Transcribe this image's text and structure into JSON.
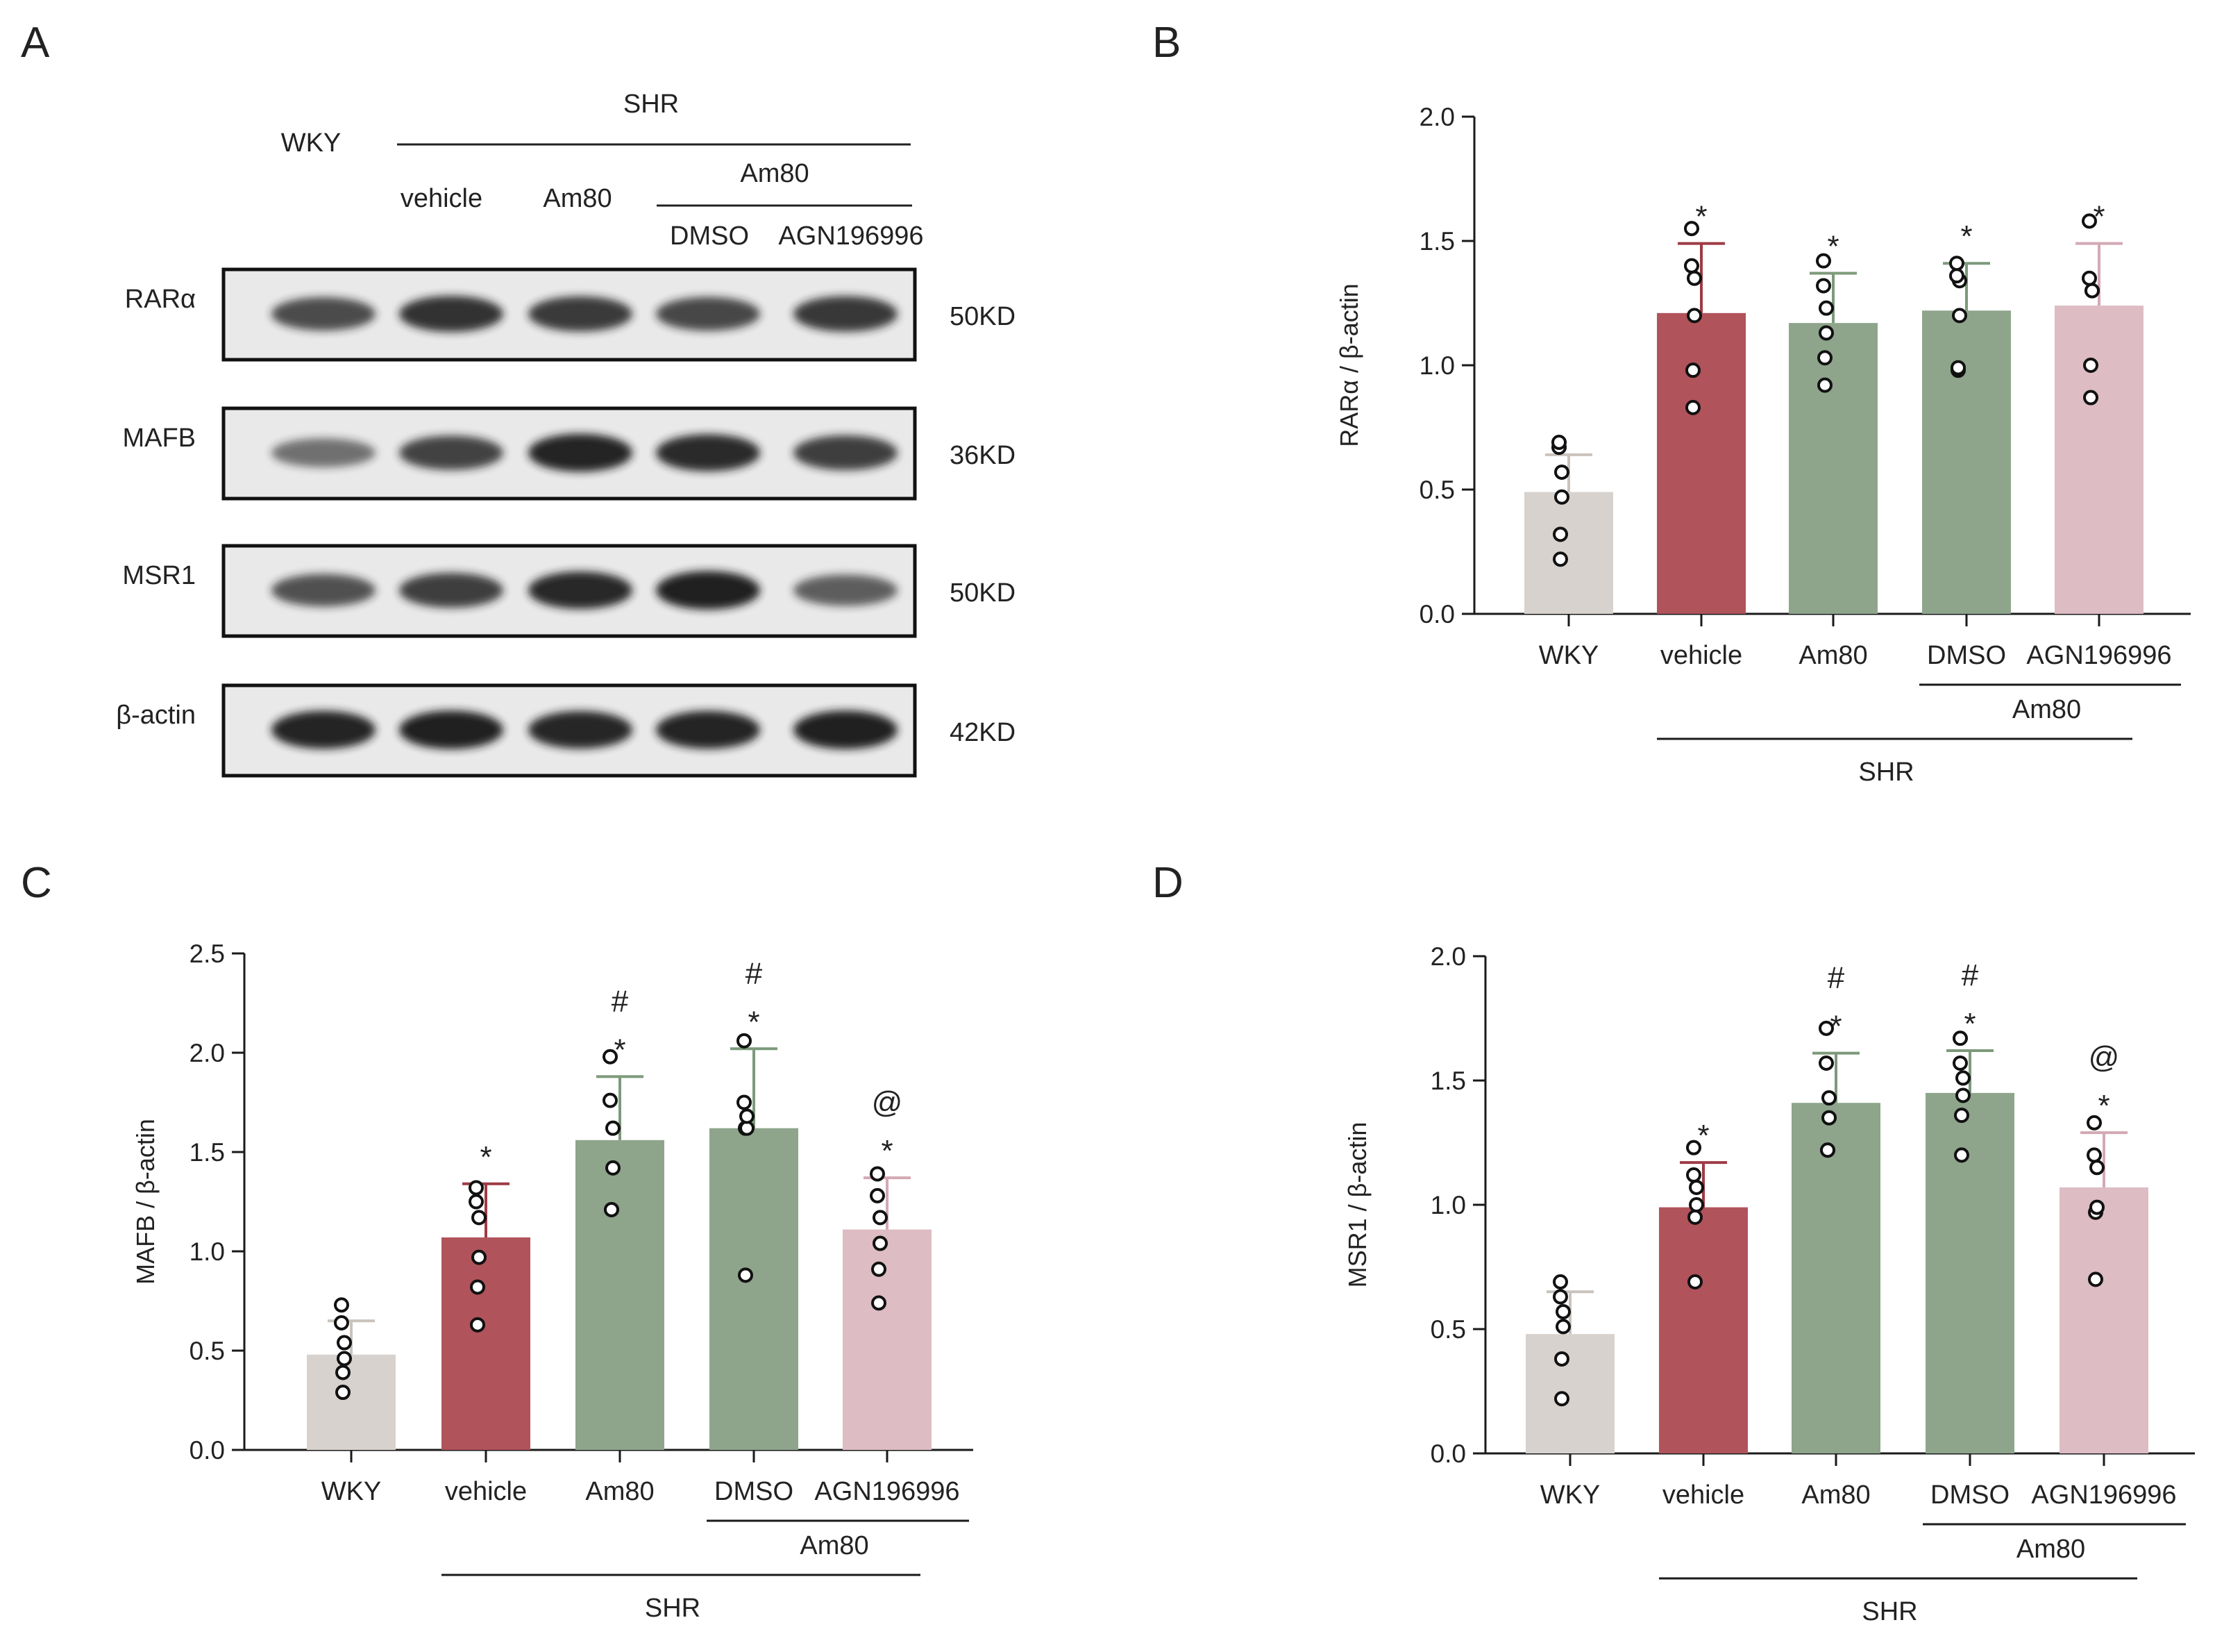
{
  "panel_letters": {
    "A": "A",
    "B": "B",
    "C": "C",
    "D": "D"
  },
  "colors": {
    "WKY": "#d7d2cd",
    "vehicle": "#b1535b",
    "Am80": "#8ea58c",
    "DMSO": "#8ea58c",
    "AGN196996": "#ddbcc4",
    "axis": "#1a1a1a",
    "blot_bg": "#e9e9e9",
    "band": "#1c1c1c"
  },
  "western_blot": {
    "header": {
      "wky": "WKY",
      "shr": "SHR",
      "vehicle": "vehicle",
      "am80": "Am80",
      "am80_group": "Am80",
      "dmso": "DMSO",
      "agn": "AGN196996"
    },
    "rows": [
      {
        "label": "RARα",
        "kd": "50KD",
        "intensities": [
          0.7,
          0.85,
          0.8,
          0.72,
          0.82
        ]
      },
      {
        "label": "MAFB",
        "kd": "36KD",
        "intensities": [
          0.45,
          0.75,
          0.95,
          0.9,
          0.78
        ]
      },
      {
        "label": "MSR1",
        "kd": "50KD",
        "intensities": [
          0.65,
          0.78,
          0.92,
          0.98,
          0.58
        ]
      },
      {
        "label": "β-actin",
        "kd": "42KD",
        "intensities": [
          0.95,
          0.98,
          0.93,
          0.95,
          0.98
        ]
      }
    ]
  },
  "chart_data": [
    {
      "panel": "B",
      "type": "bar",
      "ylabel": "RARα / β-actin",
      "ylim": [
        0,
        2.0
      ],
      "yticks": [
        "0.0",
        "0.5",
        "1.0",
        "1.5",
        "2.0"
      ],
      "categories": [
        "WKY",
        "vehicle",
        "Am80",
        "DMSO",
        "AGN196996"
      ],
      "values": [
        0.49,
        1.21,
        1.17,
        1.22,
        1.24
      ],
      "errors": [
        0.15,
        0.28,
        0.2,
        0.19,
        0.25
      ],
      "points": [
        [
          0.22,
          0.32,
          0.47,
          0.57,
          0.67,
          0.69
        ],
        [
          0.83,
          0.98,
          1.2,
          1.35,
          1.4,
          1.55
        ],
        [
          0.92,
          1.03,
          1.13,
          1.23,
          1.32,
          1.42
        ],
        [
          0.98,
          0.99,
          1.2,
          1.34,
          1.36,
          1.41
        ],
        [
          0.87,
          1.0,
          1.3,
          1.3,
          1.35,
          1.58
        ]
      ],
      "significance": [
        [],
        [
          "*"
        ],
        [
          "*"
        ],
        [
          "*"
        ],
        [
          "*"
        ]
      ],
      "group_labels": {
        "am80": "Am80",
        "shr": "SHR"
      }
    },
    {
      "panel": "C",
      "type": "bar",
      "ylabel": "MAFB / β-actin",
      "ylim": [
        0,
        2.5
      ],
      "yticks": [
        "0.0",
        "0.5",
        "1.0",
        "1.5",
        "2.0",
        "2.5"
      ],
      "categories": [
        "WKY",
        "vehicle",
        "Am80",
        "DMSO",
        "AGN196996"
      ],
      "values": [
        0.48,
        1.07,
        1.56,
        1.62,
        1.11
      ],
      "errors": [
        0.17,
        0.27,
        0.32,
        0.4,
        0.26
      ],
      "points": [
        [
          0.29,
          0.39,
          0.46,
          0.54,
          0.64,
          0.73
        ],
        [
          0.63,
          0.82,
          0.97,
          1.17,
          1.25,
          1.32
        ],
        [
          1.21,
          1.21,
          1.42,
          1.62,
          1.76,
          1.98
        ],
        [
          0.88,
          1.62,
          1.62,
          1.68,
          1.75,
          2.06
        ],
        [
          0.74,
          0.91,
          1.04,
          1.17,
          1.28,
          1.39
        ]
      ],
      "significance": [
        [],
        [
          "*"
        ],
        [
          "#",
          "*"
        ],
        [
          "#",
          "*"
        ],
        [
          "@",
          "*"
        ]
      ],
      "group_labels": {
        "am80": "Am80",
        "shr": "SHR"
      }
    },
    {
      "panel": "D",
      "type": "bar",
      "ylabel": "MSR1 / β-actin",
      "ylim": [
        0,
        2.0
      ],
      "yticks": [
        "0.0",
        "0.5",
        "1.0",
        "1.5",
        "2.0"
      ],
      "categories": [
        "WKY",
        "vehicle",
        "Am80",
        "DMSO",
        "AGN196996"
      ],
      "values": [
        0.48,
        0.99,
        1.41,
        1.45,
        1.07
      ],
      "errors": [
        0.17,
        0.18,
        0.2,
        0.17,
        0.22
      ],
      "points": [
        [
          0.22,
          0.38,
          0.51,
          0.57,
          0.63,
          0.69
        ],
        [
          0.69,
          0.95,
          1.0,
          1.07,
          1.12,
          1.23
        ],
        [
          1.22,
          1.22,
          1.35,
          1.43,
          1.57,
          1.71
        ],
        [
          1.2,
          1.36,
          1.44,
          1.51,
          1.57,
          1.67
        ],
        [
          0.7,
          0.97,
          0.99,
          1.15,
          1.2,
          1.33
        ]
      ],
      "significance": [
        [],
        [
          "*"
        ],
        [
          "#",
          "*"
        ],
        [
          "#",
          "*"
        ],
        [
          "@",
          "*"
        ]
      ],
      "group_labels": {
        "am80": "Am80",
        "shr": "SHR"
      }
    }
  ]
}
